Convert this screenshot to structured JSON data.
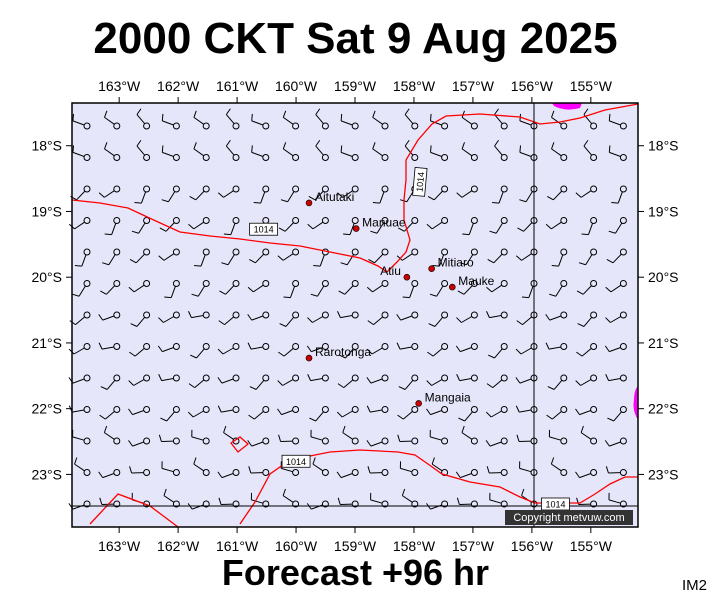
{
  "title": "2000 CKT Sat 9 Aug 2025",
  "footer": "Forecast +96 hr",
  "footer_id": "IM2",
  "copyright": "Copyright metvuw.com",
  "colors": {
    "ocean": "#e6e6fa",
    "isobar": "#ff0000",
    "barb": "#000000",
    "place": "#cc0000",
    "high_patch": "#ff00ff"
  },
  "axes": {
    "lon_ticks": [
      "163°W",
      "162°W",
      "161°W",
      "160°W",
      "159°W",
      "158°W",
      "157°W",
      "156°W",
      "155°W"
    ],
    "lon_values": [
      -163,
      -162,
      -161,
      -160,
      -159,
      -158,
      -157,
      -156,
      -155
    ],
    "lat_ticks": [
      "18°S",
      "19°S",
      "20°S",
      "21°S",
      "22°S",
      "23°S"
    ],
    "lat_values": [
      -18,
      -19,
      -20,
      -21,
      -22,
      -23
    ],
    "lon_range": [
      -163.8,
      -154.2
    ],
    "lat_range": [
      -23.8,
      -17.35
    ]
  },
  "places": [
    {
      "name": "Aitutaki",
      "lon": -159.78,
      "lat": -18.87,
      "label_side": "right"
    },
    {
      "name": "Manuae",
      "lon": -158.98,
      "lat": -19.26,
      "label_side": "right"
    },
    {
      "name": "Mitiaro",
      "lon": -157.7,
      "lat": -19.87,
      "label_side": "right"
    },
    {
      "name": "Atiu",
      "lon": -158.12,
      "lat": -20.0,
      "label_side": "left"
    },
    {
      "name": "Mauke",
      "lon": -157.35,
      "lat": -20.15,
      "label_side": "right"
    },
    {
      "name": "Rarotonga",
      "lon": -159.78,
      "lat": -21.23,
      "label_side": "right"
    },
    {
      "name": "Mangaia",
      "lon": -157.92,
      "lat": -21.92,
      "label_side": "right"
    }
  ],
  "isobars": [
    {
      "value": "1014",
      "label": "1014",
      "label_at": [
        -160.55,
        -19.27
      ],
      "label_rot": 0
    },
    {
      "value": "1014",
      "label": "1014",
      "label_at": [
        -157.9,
        -18.55
      ],
      "label_rot": -85
    },
    {
      "value": "1014",
      "label": "1014",
      "label_at": [
        -160.0,
        -22.8
      ],
      "label_rot": 0
    },
    {
      "value": "1014",
      "label": "1014",
      "label_at": [
        -155.6,
        -23.45
      ],
      "label_rot": 0
    }
  ]
}
